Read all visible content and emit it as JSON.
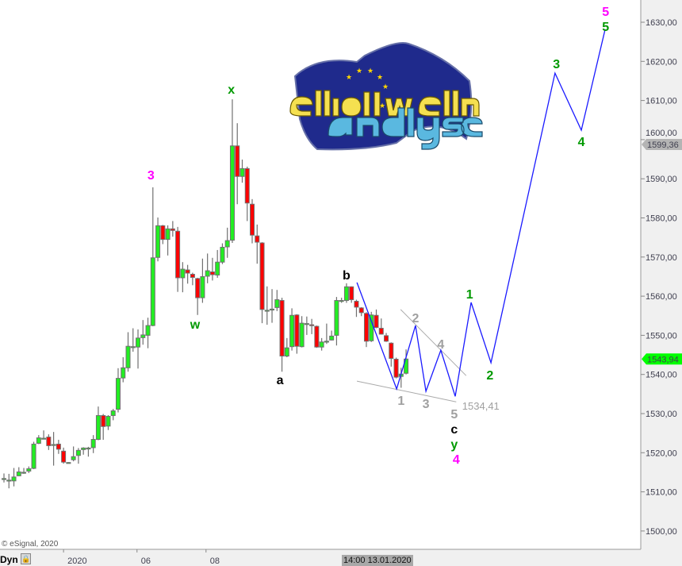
{
  "logo": {
    "line1": "elliott wellen",
    "line2": "analysen"
  },
  "footer": {
    "copyright": "© eSignal, 2020",
    "mode_label": "Dyn",
    "lock_icon": "lock-icon",
    "cursor_time": "14:00 13.01.2020"
  },
  "colors": {
    "up": "#22ee22",
    "down": "#ff0000",
    "outline": "#707070",
    "wave": "#1a1aff",
    "trend": "#aaaaaa",
    "magenta": "#ff00ff",
    "green": "#009900",
    "black": "#000000",
    "gray": "#a0a0a0",
    "last_price_bg": "#00ff00",
    "marker_bg": "#b4b4b4"
  },
  "chart_data": {
    "type": "candlestick",
    "ylim": [
      1495,
      1635
    ],
    "y_ticks": [
      "1500,00",
      "1510,00",
      "1520,00",
      "1530,00",
      "1540,00",
      "1550,00",
      "1560,00",
      "1570,00",
      "1580,00",
      "1590,00",
      "1600,00",
      "1610,00",
      "1620,00",
      "1630,00"
    ],
    "y_tick_values": [
      1500,
      1510,
      1520,
      1530,
      1540,
      1550,
      1560,
      1570,
      1580,
      1590,
      1600,
      1610,
      1620,
      1630
    ],
    "x_ticks": [
      {
        "label": "2020",
        "bar": 12
      },
      {
        "label": "06",
        "bar": 26.8
      },
      {
        "label": "08",
        "bar": 40.7
      }
    ],
    "price_markers": [
      {
        "label": "1599,36",
        "value": 1599.36,
        "kind": "marker"
      },
      {
        "label": "1543,94",
        "value": 1543.94,
        "kind": "last"
      }
    ],
    "candles_ohlc": [
      [
        1513.4,
        1514.7,
        1512.4,
        1513.4
      ],
      [
        1513.0,
        1514.6,
        1510.9,
        1513.0
      ],
      [
        1512.8,
        1516.1,
        1511.4,
        1513.8
      ],
      [
        1514.1,
        1516.3,
        1514.0,
        1515.1
      ],
      [
        1515.0,
        1516.1,
        1514.6,
        1515.0
      ],
      [
        1515.3,
        1516.5,
        1514.8,
        1515.9
      ],
      [
        1516.0,
        1522.8,
        1515.8,
        1522.2
      ],
      [
        1522.4,
        1524.5,
        1522.2,
        1523.8
      ],
      [
        1523.7,
        1525.7,
        1523.5,
        1523.7
      ],
      [
        1524.0,
        1524.7,
        1520.7,
        1521.8
      ],
      [
        1522.1,
        1525.3,
        1516.7,
        1522.1
      ],
      [
        1522.2,
        1523.3,
        1519.7,
        1520.9
      ],
      [
        1520.4,
        1521.3,
        1517.2,
        1517.6
      ],
      [
        1517.5,
        1517.6,
        1517.3,
        1517.5
      ],
      [
        1518.2,
        1521.6,
        1517.8,
        1519.0
      ],
      [
        1519.3,
        1521.2,
        1517.2,
        1520.6
      ],
      [
        1520.8,
        1521.4,
        1519.5,
        1521.2
      ],
      [
        1521.2,
        1521.5,
        1519.0,
        1521.2
      ],
      [
        1521.3,
        1524.5,
        1519.9,
        1523.4
      ],
      [
        1523.4,
        1531.8,
        1523.2,
        1529.5
      ],
      [
        1529.5,
        1529.9,
        1523.3,
        1526.7
      ],
      [
        1526.8,
        1529.6,
        1525.8,
        1529.3
      ],
      [
        1529.5,
        1531.2,
        1528.3,
        1530.7
      ],
      [
        1531.1,
        1541.6,
        1530.3,
        1539.0
      ],
      [
        1539.1,
        1544.4,
        1538.0,
        1541.7
      ],
      [
        1541.7,
        1550.8,
        1540.7,
        1547.2
      ],
      [
        1547.1,
        1551.8,
        1545.8,
        1547.1
      ],
      [
        1547.0,
        1551.5,
        1541.5,
        1549.3
      ],
      [
        1549.4,
        1553.9,
        1547.6,
        1550.1
      ],
      [
        1550.0,
        1554.5,
        1546.7,
        1552.5
      ],
      [
        1552.5,
        1587.8,
        1552.3,
        1569.8
      ],
      [
        1569.9,
        1580.1,
        1568.9,
        1578.0
      ],
      [
        1578.0,
        1578.2,
        1573.3,
        1574.5
      ],
      [
        1574.5,
        1578.1,
        1570.4,
        1577.2
      ],
      [
        1577.2,
        1579.2,
        1575.2,
        1576.8
      ],
      [
        1576.6,
        1577.7,
        1561.1,
        1564.7
      ],
      [
        1564.7,
        1568.7,
        1561.0,
        1566.9
      ],
      [
        1566.7,
        1568.0,
        1563.2,
        1565.9
      ],
      [
        1565.6,
        1566.0,
        1562.8,
        1564.8
      ],
      [
        1564.5,
        1564.7,
        1555.2,
        1559.6
      ],
      [
        1559.6,
        1569.6,
        1558.3,
        1565.0
      ],
      [
        1565.1,
        1570.9,
        1563.3,
        1566.5
      ],
      [
        1566.2,
        1569.8,
        1564.0,
        1565.5
      ],
      [
        1565.4,
        1571.8,
        1564.7,
        1568.7
      ],
      [
        1568.7,
        1573.5,
        1568.2,
        1572.5
      ],
      [
        1572.6,
        1577.5,
        1569.8,
        1574.2
      ],
      [
        1574.3,
        1610.3,
        1573.6,
        1598.4
      ],
      [
        1598.4,
        1604.2,
        1583.5,
        1590.6
      ],
      [
        1590.6,
        1594.9,
        1589.0,
        1592.6
      ],
      [
        1592.6,
        1593.1,
        1579.2,
        1583.8
      ],
      [
        1583.5,
        1584.8,
        1573.5,
        1575.6
      ],
      [
        1575.4,
        1578.3,
        1568.3,
        1573.8
      ],
      [
        1573.6,
        1573.8,
        1553.1,
        1556.6
      ],
      [
        1556.4,
        1562.5,
        1552.7,
        1556.4
      ],
      [
        1556.7,
        1561.8,
        1553.2,
        1556.7
      ],
      [
        1557.1,
        1561.6,
        1556.2,
        1559.1
      ],
      [
        1558.9,
        1559.6,
        1540.7,
        1544.7
      ],
      [
        1544.7,
        1549.3,
        1544.4,
        1546.8
      ],
      [
        1547.1,
        1556.9,
        1546.1,
        1555.1
      ],
      [
        1555.2,
        1555.4,
        1545.3,
        1547.2
      ],
      [
        1547.1,
        1554.9,
        1546.9,
        1553.1
      ],
      [
        1553.0,
        1554.8,
        1550.1,
        1553.0
      ],
      [
        1552.7,
        1554.2,
        1550.3,
        1552.6
      ],
      [
        1552.3,
        1552.5,
        1546.8,
        1547.0
      ],
      [
        1547.0,
        1549.3,
        1546.1,
        1548.3
      ],
      [
        1548.5,
        1553.0,
        1547.8,
        1548.5
      ],
      [
        1548.8,
        1551.2,
        1548.7,
        1549.8
      ],
      [
        1550.0,
        1559.8,
        1547.4,
        1558.9
      ],
      [
        1558.9,
        1559.6,
        1558.3,
        1558.9
      ],
      [
        1558.9,
        1563.3,
        1558.3,
        1562.4
      ],
      [
        1562.4,
        1562.5,
        1558.3,
        1559.1
      ],
      [
        1558.7,
        1559.1,
        1554.7,
        1557.2
      ],
      [
        1557.0,
        1557.2,
        1554.9,
        1555.8
      ],
      [
        1555.6,
        1555.9,
        1547.0,
        1548.5
      ],
      [
        1548.6,
        1556.0,
        1548.3,
        1555.2
      ],
      [
        1555.1,
        1556.6,
        1551.8,
        1552.0
      ],
      [
        1551.8,
        1554.3,
        1550.2,
        1550.3
      ],
      [
        1549.9,
        1550.6,
        1548.3,
        1548.5
      ],
      [
        1548.0,
        1548.2,
        1542.0,
        1544.1
      ],
      [
        1543.9,
        1544.3,
        1539.0,
        1539.3
      ],
      [
        1539.5,
        1541.7,
        1536.6,
        1540.1
      ],
      [
        1540.3,
        1546.4,
        1540.0,
        1543.94
      ]
    ],
    "wave_path": [
      [
        71.1,
        1563.5
      ],
      [
        79.1,
        1536.3
      ],
      [
        82.9,
        1552.5
      ],
      [
        85.0,
        1535.7
      ],
      [
        88.0,
        1546.2
      ],
      [
        90.9,
        1534.41
      ],
      [
        94.1,
        1558.4
      ],
      [
        98.1,
        1543.0
      ],
      [
        111.0,
        1617.0
      ],
      [
        116.3,
        1602.4
      ],
      [
        121.1,
        1628.2
      ]
    ],
    "trend_lines": [
      [
        [
          79.9,
          1556.6
        ],
        [
          93.1,
          1539.7
        ]
      ],
      [
        [
          71.1,
          1538.3
        ],
        [
          91.1,
          1533.0
        ]
      ]
    ],
    "annotations": [
      {
        "text": "3",
        "color": "magenta",
        "bar": 29.6,
        "price": 1591.1
      },
      {
        "text": "x",
        "color": "green",
        "bar": 45.8,
        "price": 1613.0
      },
      {
        "text": "w",
        "color": "green",
        "bar": 38.5,
        "price": 1552.9
      },
      {
        "text": "a",
        "color": "black",
        "bar": 55.6,
        "price": 1538.7
      },
      {
        "text": "b",
        "color": "black",
        "bar": 69.0,
        "price": 1565.5
      },
      {
        "text": "1",
        "color": "gray",
        "bar": 80.0,
        "price": 1533.4
      },
      {
        "text": "2",
        "color": "gray",
        "bar": 82.9,
        "price": 1554.5
      },
      {
        "text": "3",
        "color": "gray",
        "bar": 85.0,
        "price": 1532.6
      },
      {
        "text": "4",
        "color": "gray",
        "bar": 88.0,
        "price": 1547.8
      },
      {
        "text": "5",
        "color": "gray",
        "bar": 90.7,
        "price": 1530.0
      },
      {
        "text": "1534,41",
        "color": "gray",
        "bar": 92.3,
        "price": 1532.2,
        "plain": true
      },
      {
        "text": "c",
        "color": "black",
        "bar": 90.7,
        "price": 1526.9
      },
      {
        "text": "y",
        "color": "green",
        "bar": 90.7,
        "price": 1523.9
      },
      {
        "text": "4",
        "color": "magenta",
        "bar": 91.1,
        "price": 1520.5
      },
      {
        "text": "1",
        "color": "green",
        "bar": 93.8,
        "price": 1560.6
      },
      {
        "text": "2",
        "color": "green",
        "bar": 97.9,
        "price": 1539.9
      },
      {
        "text": "3",
        "color": "green",
        "bar": 111.3,
        "price": 1619.5
      },
      {
        "text": "4",
        "color": "green",
        "bar": 116.3,
        "price": 1599.6
      },
      {
        "text": "5",
        "color": "magenta",
        "bar": 121.2,
        "price": 1632.8
      },
      {
        "text": "5",
        "color": "green",
        "bar": 121.2,
        "price": 1629.6
      }
    ]
  }
}
